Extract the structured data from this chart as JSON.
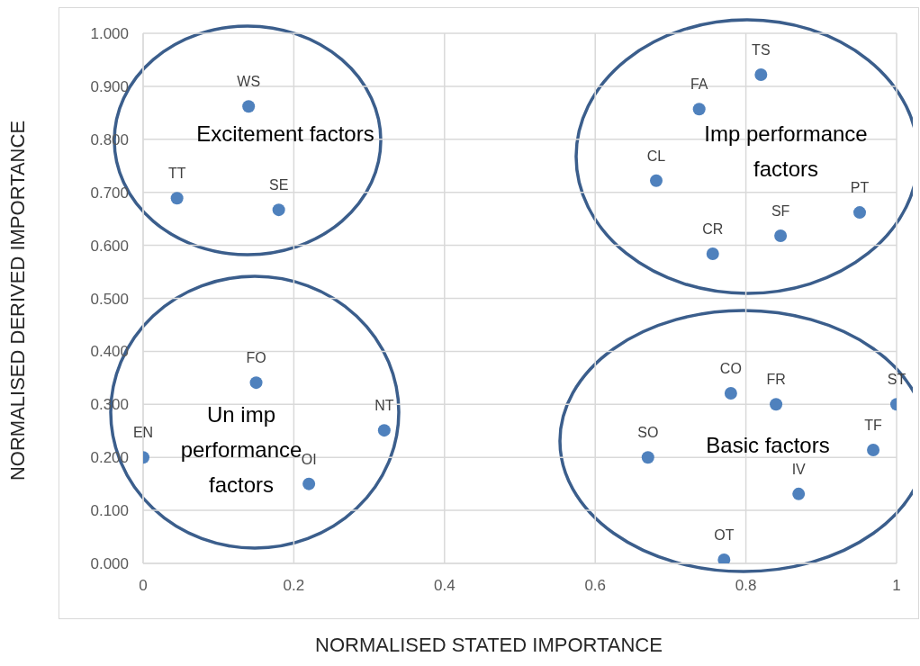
{
  "chart_data": {
    "type": "scatter",
    "xlabel": "NORMALISED STATED IMPORTANCE",
    "ylabel": "NORMALISED DERIVED IMPORTANCE",
    "x": [
      0.14,
      0.045,
      0.18,
      0.82,
      0.738,
      0.681,
      0.756,
      0.846,
      0.951,
      0.15,
      0.0,
      0.22,
      0.32,
      0.78,
      0.84,
      1.0,
      0.969,
      0.67,
      0.87,
      0.771
    ],
    "series": [
      {
        "color": "#4f81bd",
        "values": [
          0.862,
          0.689,
          0.667,
          0.922,
          0.857,
          0.722,
          0.584,
          0.618,
          0.662,
          0.341,
          0.2,
          0.15,
          0.251,
          0.321,
          0.3,
          0.3,
          0.214,
          0.2,
          0.131,
          0.007
        ]
      }
    ],
    "xlim": [
      0,
      1
    ],
    "xticks": [
      0,
      0.2,
      0.4,
      0.6,
      0.8,
      1
    ],
    "ylim": [
      0,
      1
    ],
    "yticks": [
      {
        "value": 0,
        "label": "0.000"
      },
      {
        "value": 0.1,
        "label": "0.100"
      },
      {
        "value": 0.2,
        "label": "0.200"
      },
      {
        "value": 0.3,
        "label": "0.300"
      },
      {
        "value": 0.4,
        "label": "0.400"
      },
      {
        "value": 0.5,
        "label": "0.500"
      },
      {
        "value": 0.6,
        "label": "0.600"
      },
      {
        "value": 0.7,
        "label": "0.700"
      },
      {
        "value": 0.8,
        "label": "0.800"
      },
      {
        "value": 0.9,
        "label": "0.900"
      },
      {
        "value": 1,
        "label": "1.000"
      }
    ],
    "grid": true,
    "marker": "circle",
    "annotations": [
      {
        "text": "WS",
        "x": 0.14,
        "y": 0.862
      },
      {
        "text": "TT",
        "x": 0.045,
        "y": 0.689
      },
      {
        "text": "SE",
        "x": 0.18,
        "y": 0.667
      },
      {
        "text": "TS",
        "x": 0.82,
        "y": 0.922
      },
      {
        "text": "FA",
        "x": 0.738,
        "y": 0.857
      },
      {
        "text": "CL",
        "x": 0.681,
        "y": 0.722
      },
      {
        "text": "CR",
        "x": 0.756,
        "y": 0.584
      },
      {
        "text": "SF",
        "x": 0.846,
        "y": 0.618
      },
      {
        "text": "PT",
        "x": 0.951,
        "y": 0.662
      },
      {
        "text": "FO",
        "x": 0.15,
        "y": 0.341
      },
      {
        "text": "EN",
        "x": 0.0,
        "y": 0.2
      },
      {
        "text": "OI",
        "x": 0.22,
        "y": 0.15
      },
      {
        "text": "NT",
        "x": 0.32,
        "y": 0.251
      },
      {
        "text": "CO",
        "x": 0.78,
        "y": 0.321
      },
      {
        "text": "FR",
        "x": 0.84,
        "y": 0.3
      },
      {
        "text": "ST",
        "x": 1.0,
        "y": 0.3
      },
      {
        "text": "TF",
        "x": 0.969,
        "y": 0.214
      },
      {
        "text": "SO",
        "x": 0.67,
        "y": 0.2
      },
      {
        "text": "IV",
        "x": 0.87,
        "y": 0.131
      },
      {
        "text": "OT",
        "x": 0.771,
        "y": 0.007
      },
      "Excitement factors",
      "Imp performance factors",
      "Un imp performance factors",
      "Basic factors"
    ]
  }
}
